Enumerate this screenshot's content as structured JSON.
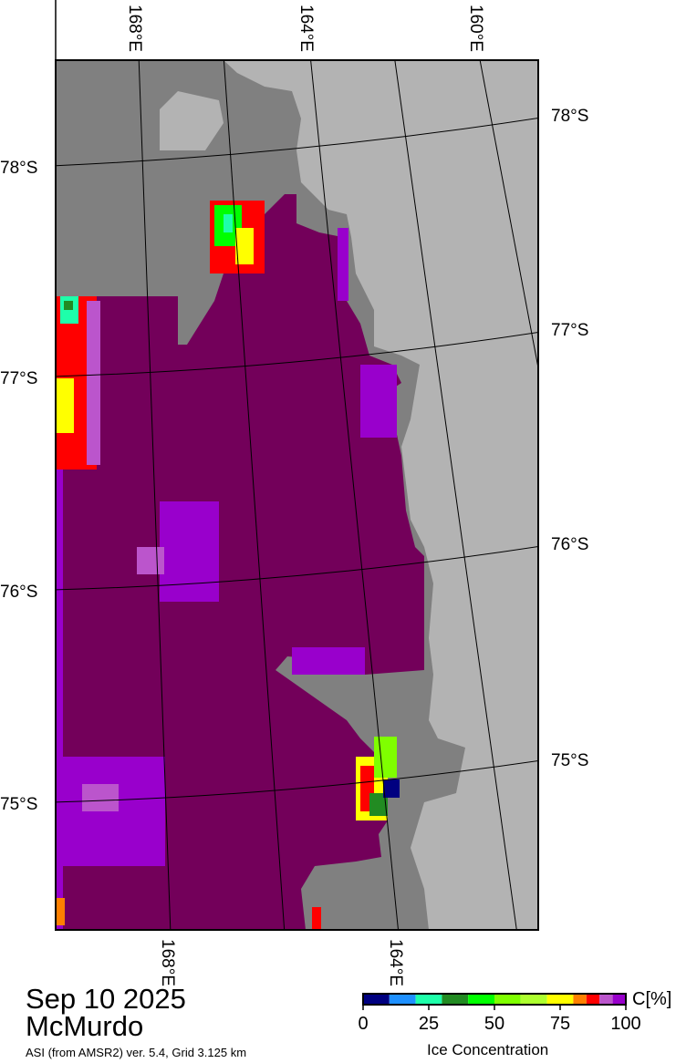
{
  "map": {
    "meridian_labels_top": [
      "168°E",
      "164°E",
      "160°E"
    ],
    "meridian_labels_bottom": [
      "168°E",
      "164°E"
    ],
    "parallel_labels_left": [
      "78°S",
      "77°S",
      "76°S",
      "75°S"
    ],
    "parallel_labels_right": [
      "78°S",
      "77°S",
      "76°S",
      "75°S"
    ],
    "colors": {
      "land": "#808080",
      "ice_shelf": "#b3b3b3",
      "ice_100": "#73005a",
      "ice_95": "#9900cc",
      "ice_90": "#bb55cc"
    }
  },
  "info": {
    "date": "Sep 10 2025",
    "region": "McMurdo",
    "product": "ASI (from AMSR2) ver. 5.4,  Grid 3.125 km"
  },
  "colorbar": {
    "title": "Ice Concentration",
    "unit": "C[%]",
    "ticks": [
      "0",
      "25",
      "50",
      "75",
      "100"
    ],
    "colors": [
      "#000080",
      "#1e90ff",
      "#1effaa",
      "#228b22",
      "#00ff00",
      "#7fff00",
      "#adff2f",
      "#ffff00",
      "#ff8000",
      "#ff0000",
      "#bb55cc",
      "#9900cc"
    ]
  }
}
